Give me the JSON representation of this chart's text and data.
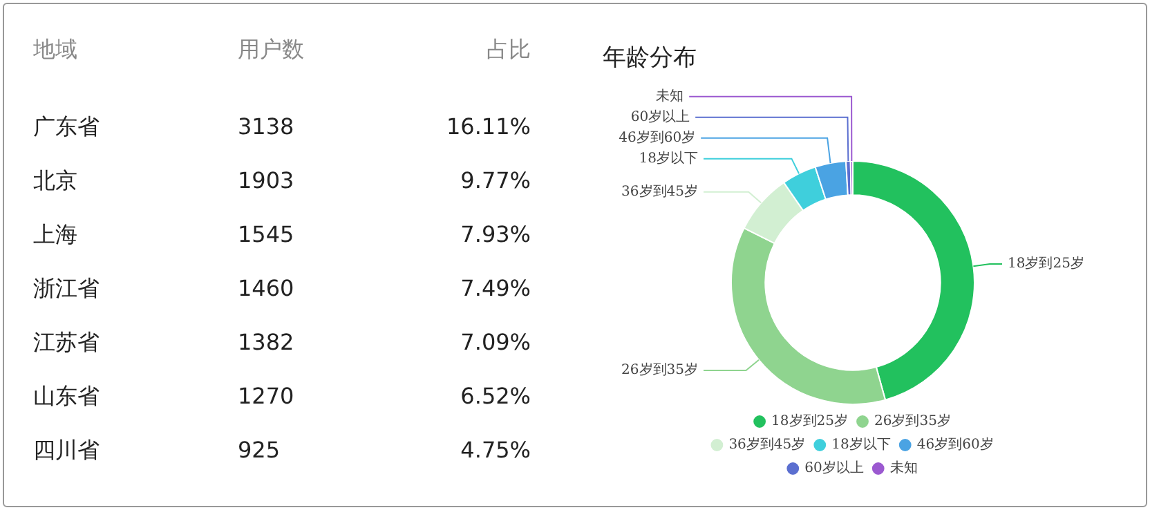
{
  "chart_data": [
    {
      "type": "other",
      "xlabel": "地域",
      "categories": [
        "广东省",
        "北京",
        "上海",
        "浙江省",
        "江苏省",
        "山东省",
        "四川省"
      ],
      "data_labels": true,
      "series": [
        {
          "name": "用户数",
          "values": [
            3138,
            1903,
            1545,
            1460,
            1382,
            1270,
            925
          ]
        },
        {
          "name": "占比",
          "values": [
            16.11,
            9.77,
            7.93,
            7.49,
            7.09,
            6.52,
            4.75
          ],
          "value_labels": [
            "16.11%",
            "9.77%",
            "7.93%",
            "7.49%",
            "7.09%",
            "6.52%",
            "4.75%"
          ]
        }
      ]
    },
    {
      "type": "donut",
      "title": "年龄分布",
      "legend": "bottom",
      "categories": [
        "18岁到25岁",
        "26岁到35岁",
        "36岁到45岁",
        "18岁以下",
        "46岁到60岁",
        "60岁以上",
        "未知"
      ],
      "values": [
        45.7,
        36.7,
        8.0,
        4.6,
        4.1,
        0.6,
        0.3
      ],
      "colors": [
        "#22c15e",
        "#8fd48f",
        "#d2efd2",
        "#3fcfdc",
        "#4aa3e3",
        "#5b6fd0",
        "#9b59d0"
      ]
    }
  ]
}
